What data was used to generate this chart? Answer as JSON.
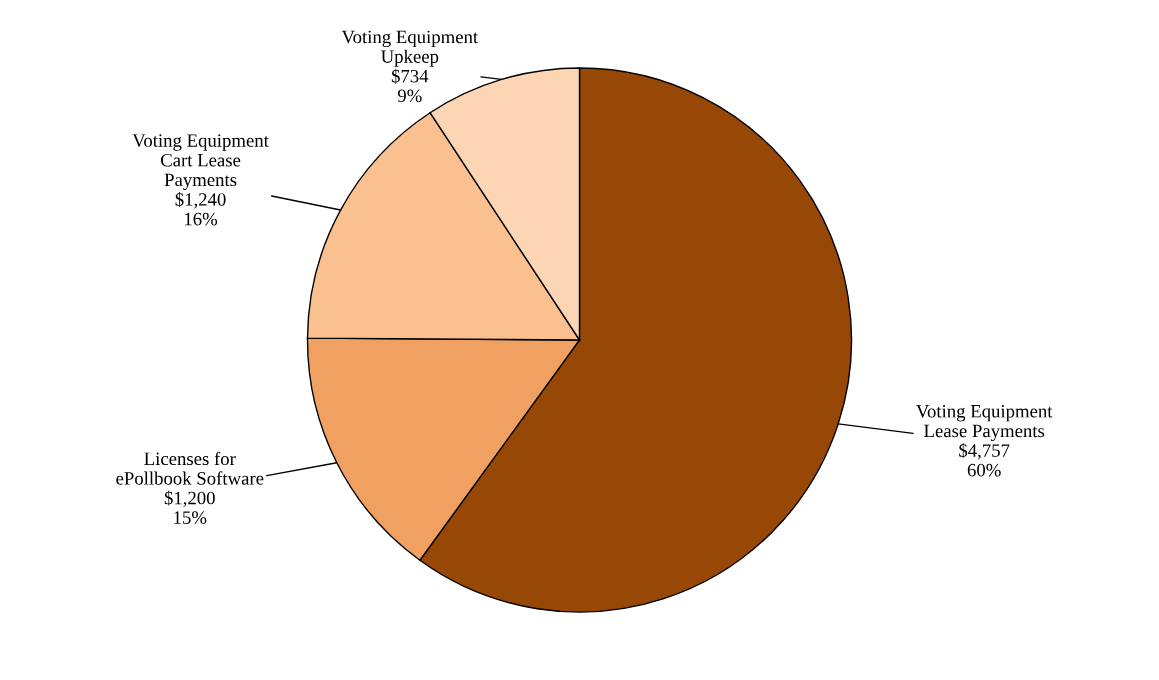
{
  "chart_data": {
    "type": "pie",
    "categories": [
      "Voting Equipment\nLease Payments",
      "Licenses for\nePollbook Software",
      "Voting Equipment\nCart Lease\nPayments",
      "Voting Equipment\nUpkeep"
    ],
    "values": [
      4757,
      1200,
      1240,
      734
    ],
    "value_labels": [
      "$4,757\n60%",
      "$1,200\n15%",
      "$1,240\n16%",
      "$734\n9%"
    ],
    "colors": [
      "#974706",
      "#f0a060",
      "#fac090",
      "#fcd5b5"
    ],
    "legend": false
  }
}
